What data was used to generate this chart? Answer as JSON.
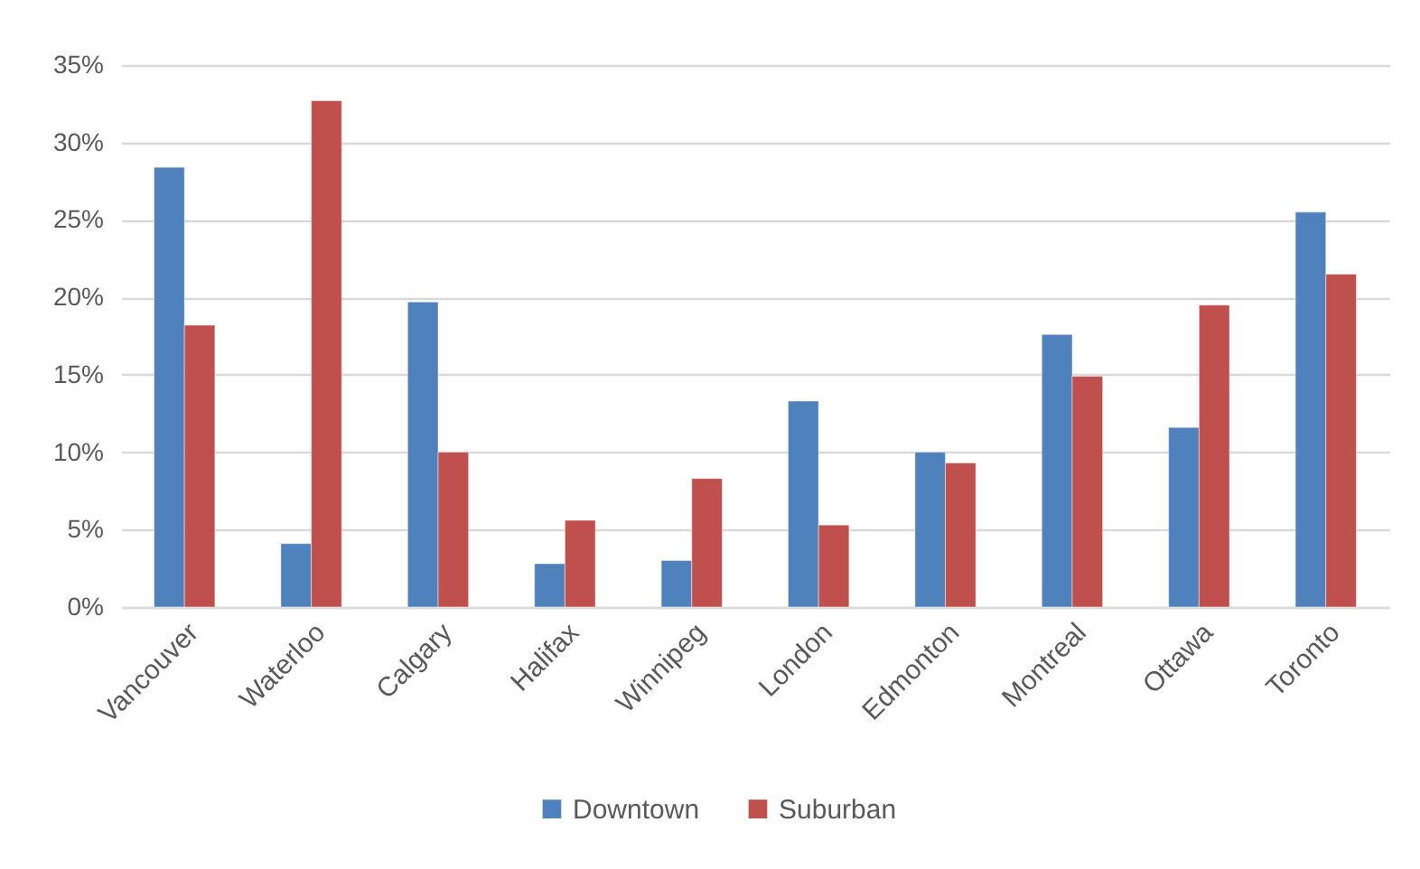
{
  "chart_data": {
    "type": "bar",
    "categories": [
      "Vancouver",
      "Waterloo",
      "Calgary",
      "Halifax",
      "Winnipeg",
      "London",
      "Edmonton",
      "Montreal",
      "Ottawa",
      "Toronto"
    ],
    "series": [
      {
        "name": "Downtown",
        "color": "#4f81bd",
        "values": [
          28.4,
          4.1,
          19.7,
          2.8,
          3.0,
          13.3,
          10.0,
          17.6,
          11.6,
          25.5
        ]
      },
      {
        "name": "Suburban",
        "color": "#c0504d",
        "values": [
          18.2,
          32.7,
          10.0,
          5.6,
          8.3,
          5.3,
          9.3,
          14.9,
          19.5,
          21.5
        ]
      }
    ],
    "ylim": [
      0,
      35
    ],
    "yticks": [
      {
        "value": 0,
        "label": "0%"
      },
      {
        "value": 5,
        "label": "5%"
      },
      {
        "value": 10,
        "label": "10%"
      },
      {
        "value": 15,
        "label": "15%"
      },
      {
        "value": 20,
        "label": "20%"
      },
      {
        "value": 25,
        "label": "25%"
      },
      {
        "value": 30,
        "label": "30%"
      },
      {
        "value": 35,
        "label": "35%"
      }
    ],
    "grid": "y",
    "legend": "bottom"
  }
}
